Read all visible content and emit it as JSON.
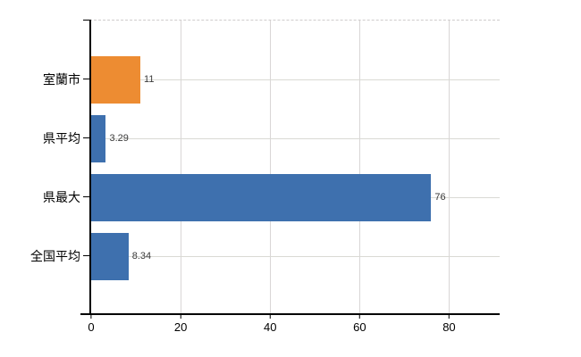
{
  "chart_data": {
    "type": "bar",
    "orientation": "horizontal",
    "title": "",
    "xlabel": "",
    "ylabel": "",
    "categories": [
      "室蘭市",
      "県平均",
      "県最大",
      "全国平均"
    ],
    "values": [
      11,
      3.29,
      76,
      8.34
    ],
    "value_labels": [
      "11",
      "3.29",
      "76",
      "8.34"
    ],
    "bar_colors": [
      "#ed8c32",
      "#3e70ae",
      "#3e70ae",
      "#3e70ae"
    ],
    "xlim": [
      0,
      91.3
    ],
    "xticks": [
      0,
      20,
      40,
      60,
      80
    ],
    "xtick_labels": [
      "0",
      "20",
      "40",
      "60",
      "80"
    ],
    "grid": true,
    "legend": "none",
    "colors": {
      "highlight_bar": "#ed8c32",
      "default_bar": "#3e70ae",
      "axis": "#000000",
      "gridline": "#d9d9d4",
      "top_border_dashed": "#cfcccc",
      "value_label_text": "#3a3a3a",
      "category_label_text": "#000000"
    }
  }
}
